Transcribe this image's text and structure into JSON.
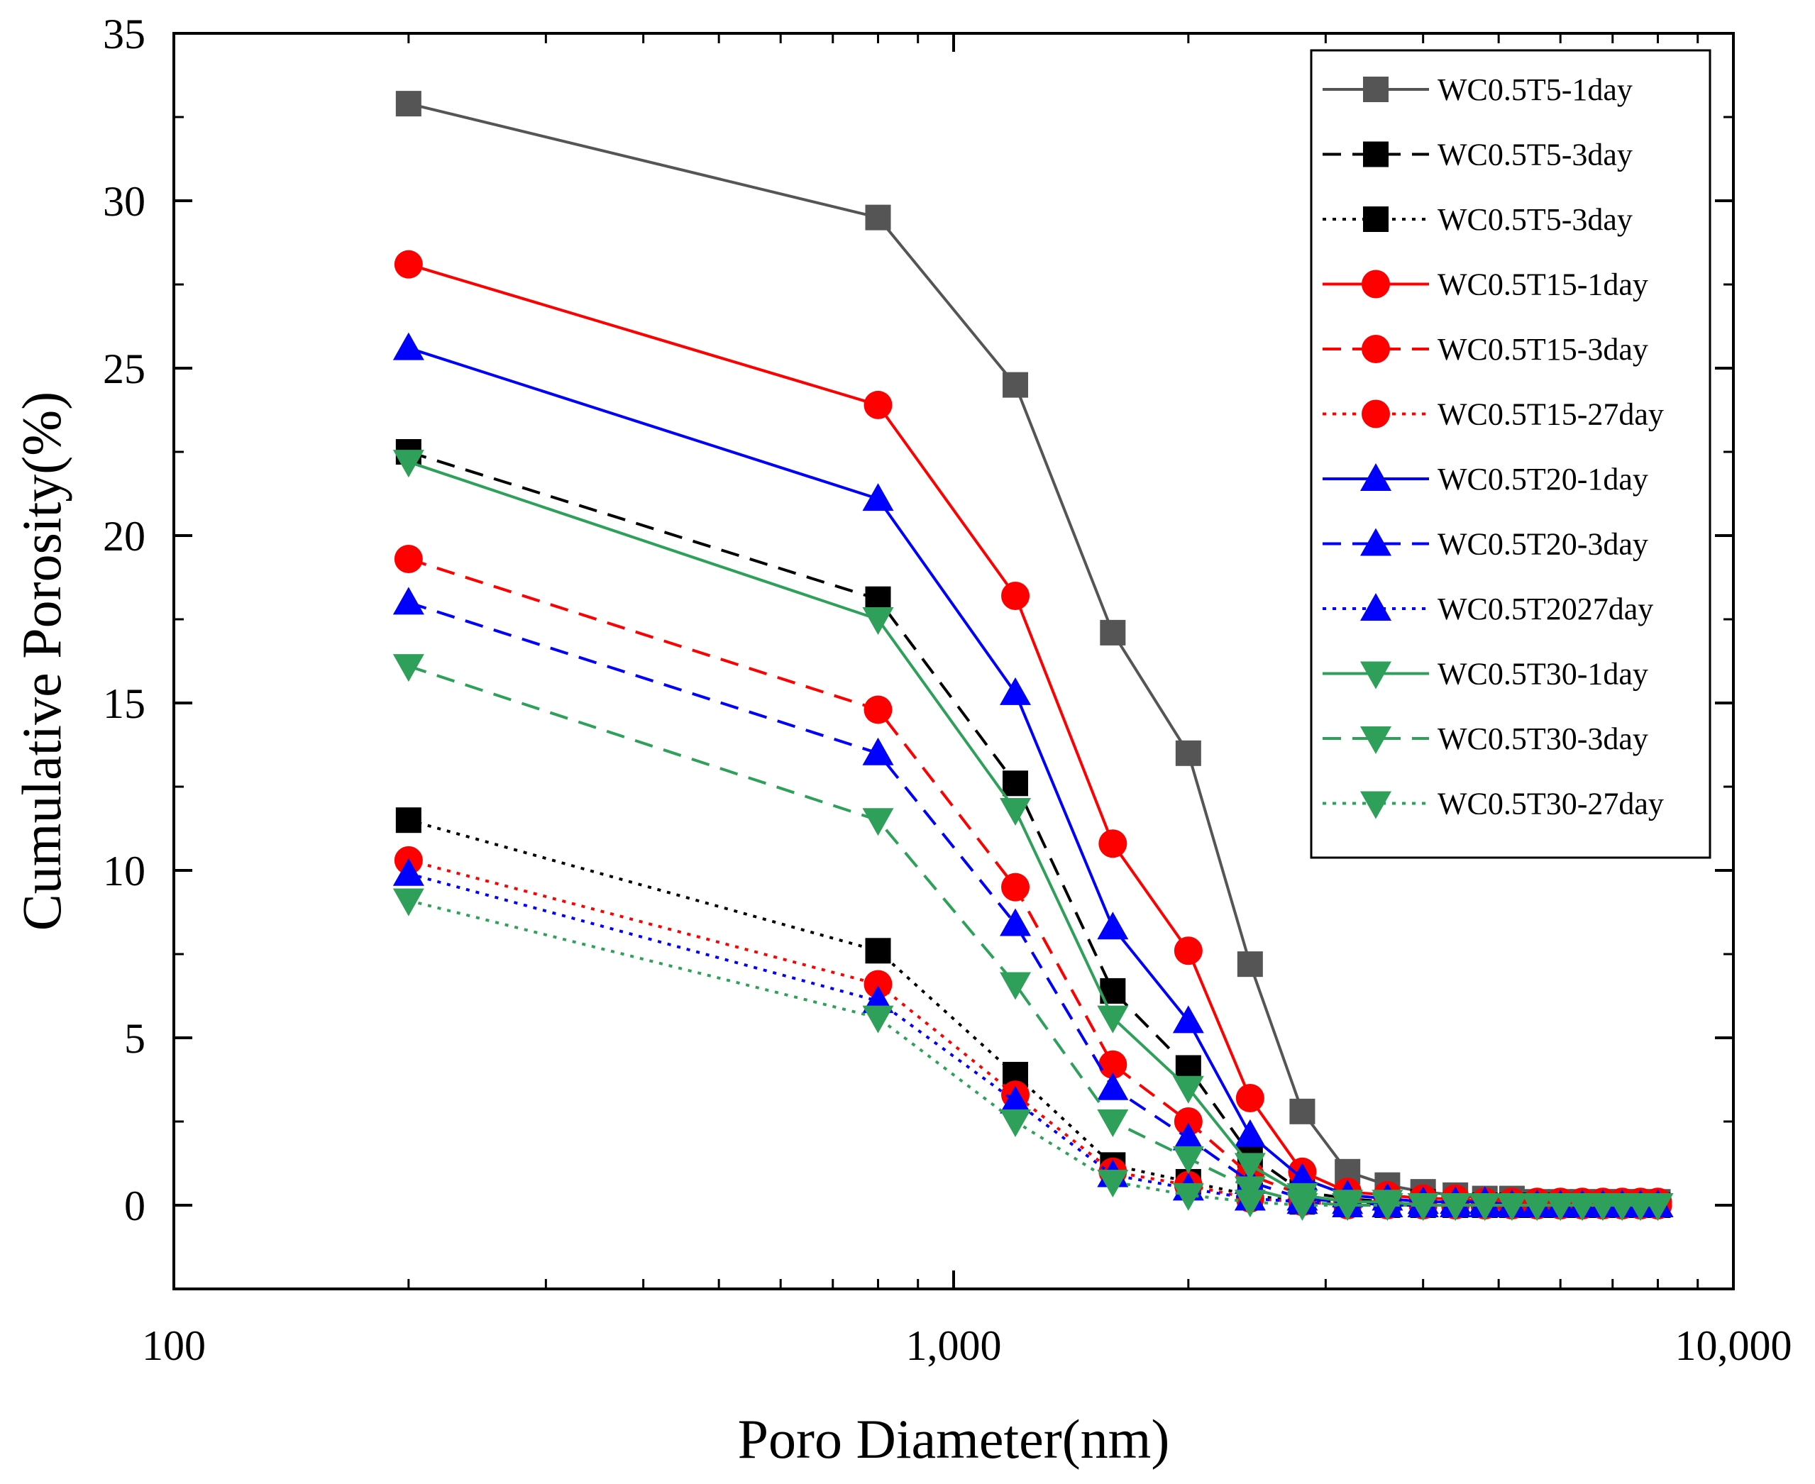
{
  "chart_data": {
    "type": "line",
    "title": "",
    "xlabel": "Poro Diameter(nm)",
    "ylabel": "Cumulative Porosity(%)",
    "xscale": "log",
    "xlim": [
      100,
      10000
    ],
    "ylim": [
      -2.5,
      35
    ],
    "xticks": [
      100,
      1000,
      10000
    ],
    "xtick_labels": [
      "100",
      "1,000",
      "10,000"
    ],
    "yticks": [
      0,
      5,
      10,
      15,
      20,
      25,
      30,
      35
    ],
    "ytick_labels": [
      "0",
      "5",
      "10",
      "15",
      "20",
      "25",
      "30",
      "35"
    ],
    "grid": false,
    "legend_position": "top-right",
    "x": [
      200,
      800,
      1200,
      1600,
      2000,
      2400,
      2800,
      3200,
      3600,
      4000,
      4400,
      4800,
      5200,
      5600,
      6000,
      6400,
      6800,
      7200,
      7600,
      8000
    ],
    "series": [
      {
        "name": "WC0.5T5-1day",
        "color": "#555555",
        "linestyle": "solid",
        "marker": "square",
        "values": [
          32.9,
          29.5,
          24.5,
          17.1,
          13.5,
          7.2,
          2.8,
          1.0,
          0.6,
          0.4,
          0.3,
          0.2,
          0.2,
          0.1,
          0.1,
          0.1,
          0.1,
          0.1,
          0.1,
          0.1
        ]
      },
      {
        "name": "WC0.5T5-3day",
        "color": "#000000",
        "linestyle": "dashed",
        "marker": "square",
        "values": [
          22.5,
          18.1,
          12.6,
          6.4,
          4.1,
          1.5,
          0.4,
          0.2,
          0.1,
          0.1,
          0.0,
          0.0,
          0.0,
          0.0,
          0.0,
          0.0,
          0.0,
          0.0,
          0.0,
          0.0
        ]
      },
      {
        "name": "WC0.5T5-3day",
        "color": "#000000",
        "linestyle": "dotted",
        "marker": "square",
        "values": [
          11.5,
          7.6,
          3.9,
          1.2,
          0.7,
          0.3,
          0.1,
          0.1,
          0.0,
          0.0,
          0.0,
          0.0,
          0.0,
          0.0,
          0.0,
          0.0,
          0.0,
          0.0,
          0.0,
          0.0
        ]
      },
      {
        "name": "WC0.5T15-1day",
        "color": "#ff0000",
        "linestyle": "solid",
        "marker": "circle",
        "values": [
          28.1,
          23.9,
          18.2,
          10.8,
          7.6,
          3.2,
          1.0,
          0.4,
          0.3,
          0.2,
          0.2,
          0.1,
          0.1,
          0.1,
          0.1,
          0.1,
          0.1,
          0.1,
          0.1,
          0.1
        ]
      },
      {
        "name": "WC0.5T15-3day",
        "color": "#ff0000",
        "linestyle": "dashed",
        "marker": "circle",
        "values": [
          19.3,
          14.8,
          9.5,
          4.2,
          2.5,
          0.9,
          0.3,
          0.1,
          0.1,
          0.0,
          0.0,
          0.0,
          0.0,
          0.0,
          0.0,
          0.0,
          0.0,
          0.0,
          0.0,
          0.0
        ]
      },
      {
        "name": "WC0.5T15-27day",
        "color": "#ff0000",
        "linestyle": "dotted",
        "marker": "circle",
        "values": [
          10.3,
          6.6,
          3.3,
          1.0,
          0.6,
          0.2,
          0.1,
          0.0,
          0.0,
          0.0,
          0.0,
          0.0,
          0.0,
          0.0,
          0.0,
          0.0,
          0.0,
          0.0,
          0.0,
          0.0
        ]
      },
      {
        "name": "WC0.5T20-1day",
        "color": "#0000ff",
        "linestyle": "solid",
        "marker": "triangle-up",
        "values": [
          25.6,
          21.1,
          15.3,
          8.3,
          5.5,
          2.1,
          0.8,
          0.3,
          0.2,
          0.1,
          0.1,
          0.1,
          0.0,
          0.0,
          0.0,
          0.0,
          0.0,
          0.0,
          0.0,
          0.0
        ]
      },
      {
        "name": "WC0.5T20-3day",
        "color": "#0000ff",
        "linestyle": "dashed",
        "marker": "triangle-up",
        "values": [
          18.0,
          13.5,
          8.4,
          3.5,
          2.0,
          0.7,
          0.2,
          0.1,
          0.0,
          0.0,
          0.0,
          0.0,
          0.0,
          0.0,
          0.0,
          0.0,
          0.0,
          0.0,
          0.0,
          0.0
        ]
      },
      {
        "name": "WC0.5T2027day",
        "color": "#0000ff",
        "linestyle": "dotted",
        "marker": "triangle-up",
        "values": [
          9.9,
          6.1,
          3.1,
          0.9,
          0.5,
          0.2,
          0.1,
          0.0,
          0.0,
          0.0,
          0.0,
          0.0,
          0.0,
          0.0,
          0.0,
          0.0,
          0.0,
          0.0,
          0.0,
          0.0
        ]
      },
      {
        "name": "WC0.5T30-1day",
        "color": "#2ea05a",
        "linestyle": "solid",
        "marker": "triangle-down",
        "values": [
          22.2,
          17.5,
          11.8,
          5.6,
          3.5,
          1.2,
          0.3,
          0.1,
          0.1,
          0.0,
          0.0,
          0.0,
          0.0,
          0.0,
          0.0,
          0.0,
          0.0,
          0.0,
          0.0,
          0.0
        ]
      },
      {
        "name": "WC0.5T30-3day",
        "color": "#2ea05a",
        "linestyle": "dashed",
        "marker": "triangle-down",
        "values": [
          16.1,
          11.5,
          6.6,
          2.5,
          1.4,
          0.5,
          0.1,
          0.0,
          0.0,
          0.0,
          0.0,
          0.0,
          0.0,
          0.0,
          0.0,
          0.0,
          0.0,
          0.0,
          0.0,
          0.0
        ]
      },
      {
        "name": "WC0.5T30-27day",
        "color": "#2ea05a",
        "linestyle": "dotted",
        "marker": "triangle-down",
        "values": [
          9.1,
          5.6,
          2.5,
          0.7,
          0.3,
          0.1,
          0.0,
          0.0,
          0.0,
          0.0,
          0.0,
          0.0,
          0.0,
          0.0,
          0.0,
          0.0,
          0.0,
          0.0,
          0.0,
          0.0
        ]
      }
    ]
  }
}
